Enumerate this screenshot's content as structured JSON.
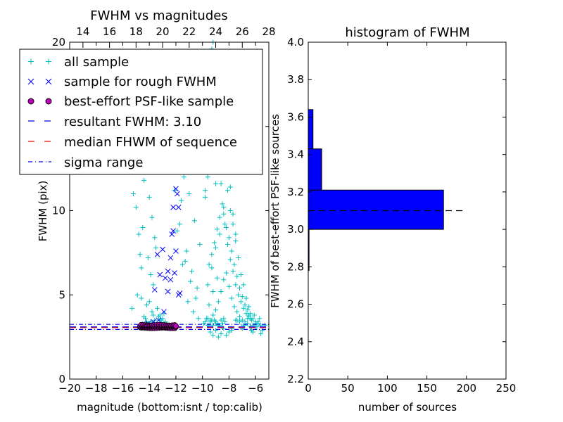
{
  "figure": {
    "title_left": "FWHM vs magnitudes",
    "title_right": "histogram of FWHM"
  },
  "colors": {
    "all": "#00bfbf",
    "rough": "#0000ff",
    "best_face": "#bf00bf",
    "resultant": "#0000ff",
    "median": "#ff0000",
    "sigma": "#0000ff",
    "hist": "#0000ff"
  },
  "chart_data": [
    {
      "type": "scatter",
      "title": "FWHM vs magnitudes",
      "xlabel": "magnitude (bottom:isnt / top:calib)",
      "ylabel": "FWHM (pix)",
      "xlim": [
        -20,
        -5
      ],
      "ylim": [
        0,
        20
      ],
      "xticks": [
        -20,
        -18,
        -16,
        -14,
        -12,
        -10,
        -8,
        -6
      ],
      "xtick_labels": [
        "−20",
        "−18",
        "−16",
        "−14",
        "−12",
        "−10",
        "−8",
        "−6"
      ],
      "yticks": [
        0,
        5,
        10,
        15,
        20
      ],
      "ytick_labels": [
        "0",
        "5",
        "10",
        "15",
        "20"
      ],
      "top_axis_ticks": [
        14,
        16,
        18,
        20,
        22,
        24,
        26,
        28
      ],
      "top_axis_labels": [
        "14",
        "16",
        "18",
        "20",
        "22",
        "24",
        "26",
        "28"
      ],
      "top_axis_offset": 33.0,
      "legend": [
        {
          "key": "all",
          "label": "all sample",
          "marker": "plus"
        },
        {
          "key": "rough",
          "label": "sample for rough FWHM",
          "marker": "x"
        },
        {
          "key": "best",
          "label": "best-effort PSF-like sample",
          "marker": "circle"
        },
        {
          "key": "resultant",
          "label": "resultant FWHM: 3.10",
          "marker": "dashed"
        },
        {
          "key": "median",
          "label": "median FHWM of sequence",
          "marker": "dashed-red"
        },
        {
          "key": "sigma",
          "label": "sigma range",
          "marker": "dashdot"
        }
      ],
      "resultant_fwhm": 3.1,
      "median_fwhm": 3.1,
      "sigma_range": [
        2.95,
        3.25
      ],
      "series_all": {
        "name": "all sample",
        "x": [
          -9.6,
          -9.4,
          -9.2,
          -9.0,
          -8.8,
          -8.6,
          -8.4,
          -8.2,
          -8.0,
          -7.8,
          -7.6,
          -7.4,
          -7.2,
          -7.0,
          -6.8,
          -6.6,
          -6.4,
          -6.2,
          -6.0,
          -5.8,
          -5.6,
          -9.5,
          -9.3,
          -9.1,
          -8.9,
          -8.7,
          -8.5,
          -8.3,
          -8.1,
          -7.9,
          -7.7,
          -7.5,
          -7.3,
          -7.1,
          -6.9,
          -6.7,
          -6.5,
          -6.3,
          -6.1,
          -5.9,
          -5.7,
          -9.8,
          -9.6,
          -9.4,
          -9.2,
          -9.0,
          -8.8,
          -8.6,
          -8.4,
          -8.2,
          -8.0,
          -7.8,
          -7.6,
          -7.4,
          -7.2,
          -7.0,
          -6.8,
          -6.6,
          -6.4,
          -6.2,
          -6.0,
          -9.7,
          -9.5,
          -9.3,
          -9.1,
          -8.9,
          -8.7,
          -8.5,
          -8.3,
          -8.1,
          -7.9,
          -7.7,
          -7.5,
          -7.3,
          -7.1,
          -6.9,
          -6.7,
          -6.5,
          -9.9,
          -9.7,
          -9.5,
          -9.3,
          -9.1,
          -8.9,
          -8.7,
          -8.5,
          -8.3,
          -8.1,
          -7.9,
          -7.7,
          -7.5,
          -9.4,
          -9.2,
          -9.0,
          -8.8,
          -8.6,
          -8.4,
          -8.2,
          -8.0,
          -7.8,
          -9.6,
          -9.3,
          -9.0,
          -8.7,
          -8.4,
          -9.5,
          -9.2,
          -8.9,
          -9.8,
          -9.4,
          -9.0,
          -9.6,
          -9.2,
          -12.6,
          -12.2,
          -11.8,
          -11.4,
          -11.0,
          -10.6,
          -10.2,
          -12.4,
          -12.0,
          -11.6,
          -11.2,
          -10.8,
          -10.4,
          -12.8,
          -12.3,
          -11.9,
          -11.5,
          -11.1,
          -10.7,
          -10.3,
          -12.5,
          -12.1,
          -11.7,
          -11.3,
          -10.9,
          -10.5,
          -14.2,
          -14.0,
          -13.8,
          -13.6,
          -14.4,
          -14.1,
          -13.9,
          -14.3,
          -13.7,
          -14.5,
          -14.0,
          -13.5,
          -15.0,
          -14.8,
          -14.6,
          -14.9,
          -15.2,
          -14.7,
          -13.4,
          -13.2,
          -13.0,
          -12.8,
          -13.3,
          -13.1,
          -12.9,
          -14.2,
          -13.8,
          -14.6,
          -13.6,
          -14.1,
          -14.4,
          -15.3,
          -14.3,
          -13.9,
          -13.7,
          -14.5,
          -13.2,
          -14.2,
          -9.5,
          -9.0,
          -8.5,
          -9.3,
          -8.8,
          -9.7,
          -8.3,
          -9.9,
          -9.1,
          -8.7,
          -9.4,
          -8.9,
          -9.6,
          -9.2,
          -8.6,
          -9.8,
          -9.0,
          -8.4,
          -7.5,
          -7.0,
          -6.5,
          -6.0,
          -5.5,
          -7.2,
          -6.8,
          -6.2,
          -5.8,
          -7.8,
          -6.6,
          -6.4,
          -5.6,
          -7.4,
          -6.9,
          -6.3,
          -5.9,
          -5.3
        ],
        "y": [
          3.2,
          3.5,
          3.8,
          4.1,
          4.6,
          5.2,
          5.9,
          6.3,
          5.5,
          4.8,
          4.3,
          4.0,
          3.7,
          3.5,
          3.4,
          3.3,
          3.6,
          3.2,
          3.1,
          3.4,
          3.2,
          6.8,
          7.4,
          8.1,
          8.9,
          9.6,
          10.4,
          9.2,
          8.0,
          7.1,
          6.4,
          5.6,
          5.0,
          4.6,
          4.2,
          3.9,
          3.7,
          3.5,
          3.8,
          3.3,
          3.6,
          11.2,
          12.0,
          12.8,
          13.6,
          14.2,
          13.0,
          11.6,
          10.2,
          9.0,
          8.4,
          7.6,
          6.8,
          6.1,
          5.4,
          4.9,
          4.4,
          4.1,
          3.9,
          3.6,
          3.4,
          15.0,
          15.8,
          16.4,
          17.0,
          16.2,
          15.2,
          14.0,
          12.6,
          11.2,
          10.0,
          9.2,
          8.2,
          7.2,
          6.2,
          5.6,
          4.8,
          4.3,
          17.6,
          18.4,
          19.0,
          19.6,
          18.8,
          18.0,
          17.2,
          16.0,
          14.6,
          13.0,
          11.4,
          9.8,
          8.6,
          2.8,
          2.6,
          2.9,
          2.5,
          2.7,
          3.0,
          2.6,
          2.8,
          2.9,
          5.6,
          6.6,
          7.8,
          8.6,
          9.8,
          4.4,
          5.2,
          6.0,
          10.8,
          12.4,
          11.6,
          19.4,
          20.0,
          16.8,
          15.4,
          14.2,
          12.0,
          11.0,
          9.4,
          8.0,
          17.6,
          13.8,
          10.6,
          7.6,
          6.4,
          5.4,
          16.2,
          12.6,
          8.8,
          6.8,
          4.6,
          4.0,
          3.6,
          14.8,
          11.2,
          9.2,
          7.0,
          5.8,
          4.8,
          12.4,
          10.8,
          9.6,
          8.4,
          11.8,
          7.2,
          6.2,
          13.2,
          5.6,
          9.0,
          4.6,
          7.8,
          10.2,
          8.6,
          6.6,
          5.0,
          11.0,
          7.4,
          4.2,
          3.8,
          3.6,
          3.4,
          3.7,
          3.5,
          3.9,
          4.4,
          4.0,
          4.8,
          3.5,
          3.3,
          3.7,
          4.2,
          3.6,
          3.4,
          3.8,
          3.3,
          3.5,
          3.4,
          3.2,
          3.4,
          3.3,
          3.5,
          3.2,
          3.6,
          3.4,
          3.3,
          3.5,
          3.2,
          3.4,
          3.3,
          3.6,
          3.2,
          3.5,
          3.4,
          3.3,
          3.6,
          3.5,
          3.0,
          3.8,
          3.3,
          2.9,
          3.4,
          3.2,
          2.8,
          3.3,
          3.0,
          3.6,
          3.1,
          2.7,
          3.5,
          3.2,
          2.9,
          3.1,
          3.2
        ]
      },
      "series_rough": {
        "name": "sample for rough FWHM",
        "x": [
          -12.0,
          -11.9,
          -11.8,
          -12.2,
          -12.3,
          -12.4,
          -12.1,
          -13.2,
          -13.0,
          -12.8,
          -12.6,
          -12.4,
          -13.4,
          -13.6,
          -11.7,
          -11.8,
          -12.2,
          -12.0,
          -12.6,
          -12.9,
          -13.3,
          -13.7,
          -14.1
        ],
        "y": [
          11.3,
          11.0,
          10.2,
          8.8,
          8.6,
          7.2,
          6.3,
          6.2,
          7.7,
          6.0,
          6.4,
          5.9,
          7.4,
          5.3,
          5.1,
          5.0,
          10.2,
          7.6,
          5.2,
          4.0,
          3.5,
          3.4,
          3.3
        ]
      },
      "series_best": {
        "name": "best-effort PSF-like sample",
        "x_range": [
          -14.7,
          -12.0
        ],
        "y_range": [
          3.02,
          3.22
        ]
      }
    },
    {
      "type": "histogram",
      "title": "histogram of FWHM",
      "xlabel": "number of sources",
      "ylabel": "FWHM of best-effort PSF-like sources",
      "xlim": [
        0,
        250
      ],
      "ylim": [
        2.2,
        4.0
      ],
      "xticks": [
        0,
        50,
        100,
        150,
        200,
        250
      ],
      "xtick_labels": [
        "0",
        "50",
        "100",
        "150",
        "200",
        "250"
      ],
      "yticks": [
        2.2,
        2.4,
        2.6,
        2.8,
        3.0,
        3.2,
        3.4,
        3.6,
        3.8,
        4.0
      ],
      "ytick_labels": [
        "2.2",
        "2.4",
        "2.6",
        "2.8",
        "3.0",
        "3.2",
        "3.4",
        "3.6",
        "3.8",
        "4.0"
      ],
      "bins": [
        {
          "lo": 2.78,
          "hi": 3.0,
          "count": 1
        },
        {
          "lo": 3.0,
          "hi": 3.21,
          "count": 171
        },
        {
          "lo": 3.21,
          "hi": 3.43,
          "count": 17
        },
        {
          "lo": 3.43,
          "hi": 3.64,
          "count": 6
        }
      ],
      "resultant_line": {
        "y": 3.1,
        "x_range": [
          0,
          200
        ]
      }
    }
  ]
}
